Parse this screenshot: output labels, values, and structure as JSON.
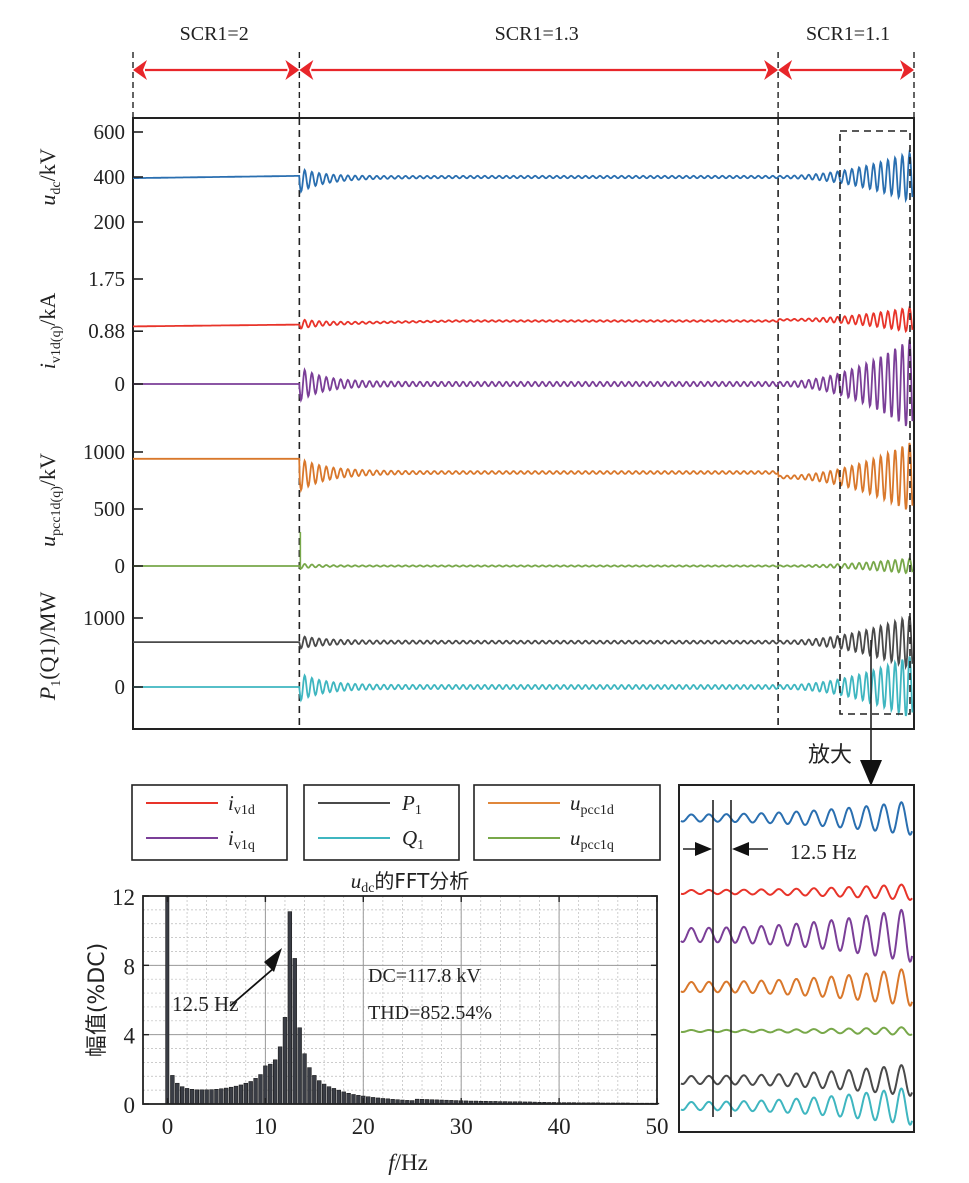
{
  "regions": [
    {
      "label": "SCR1=2",
      "t_start": 0.0,
      "t_end": 0.213
    },
    {
      "label": "SCR1=1.3",
      "t_start": 0.213,
      "t_end": 0.826
    },
    {
      "label": "SCR1=1.1",
      "t_start": 0.826,
      "t_end": 1.0
    }
  ],
  "region_arrow_color": "#e8262a",
  "zoom_label": "放大",
  "zoom_freq_label": "12.5 Hz",
  "legend": [
    {
      "items": [
        {
          "label": "i_v1d",
          "main": "i",
          "sub": "v1d",
          "color": "#e8342a"
        },
        {
          "label": "i_v1q",
          "main": "i",
          "sub": "v1q",
          "color": "#7b3f98"
        }
      ]
    },
    {
      "items": [
        {
          "label": "P_1",
          "main": "P",
          "sub": "1",
          "color": "#4a4a4a"
        },
        {
          "label": "Q_1",
          "main": "Q",
          "sub": "1",
          "color": "#3fb6c0"
        }
      ]
    },
    {
      "items": [
        {
          "label": "u_pcc1d",
          "main": "u",
          "sub": "pcc1d",
          "color": "#e0873b"
        },
        {
          "label": "u_pcc1q",
          "main": "u",
          "sub": "pcc1q",
          "color": "#78a84a"
        }
      ]
    }
  ],
  "chart_data": [
    {
      "type": "line",
      "title": "Time-domain waveforms under SCR1 changes",
      "xlabel": "",
      "x_range": [
        0,
        1
      ],
      "panels": [
        {
          "ylabel": "u_dc/kV",
          "ylabel_main": "u",
          "ylabel_sub": "dc",
          "ylabel_unit": "/kV",
          "yticks": [
            "600",
            "400",
            "200"
          ],
          "ytick_values": [
            600,
            400,
            200
          ],
          "series": [
            {
              "name": "u_dc",
              "color": "#2a6fb0",
              "steady": 400,
              "pre": 395,
              "osc_amp_scr13": 40,
              "osc_amp_scr11_end": 190
            }
          ]
        },
        {
          "ylabel": "i_v1d(q)/kA",
          "ylabel_main": "i",
          "ylabel_sub": "v1d(q)",
          "ylabel_unit": "/kA",
          "yticks": [
            "1.75",
            "0.88",
            "0"
          ],
          "ytick_values": [
            1.75,
            0.88,
            0
          ],
          "series": [
            {
              "name": "i_v1d",
              "color": "#e8342a",
              "steady": 1.0,
              "pre": 0.95
            },
            {
              "name": "i_v1q",
              "color": "#7b3f98",
              "steady": 0,
              "pre": 0
            }
          ]
        },
        {
          "ylabel": "u_pcc1d(q)/kV",
          "ylabel_main": "u",
          "ylabel_sub": "pcc1d(q)",
          "ylabel_unit": "/kV",
          "yticks": [
            "1000",
            "500",
            "0"
          ],
          "ytick_values": [
            1000,
            500,
            0
          ],
          "series": [
            {
              "name": "u_pcc1d",
              "color": "#d9782c",
              "steady": 820,
              "pre": 940
            },
            {
              "name": "u_pcc1q",
              "color": "#78a84a",
              "steady": 0,
              "pre": 0
            }
          ]
        },
        {
          "ylabel": "P1(Q1)/MW",
          "ylabel_main": "P",
          "ylabel_sub": "1",
          "ylabel_unit": "(Q1)/MW",
          "yticks": [
            "1000",
            "0"
          ],
          "ytick_values": [
            1000,
            0
          ],
          "series": [
            {
              "name": "P_1",
              "color": "#4a4a4a",
              "steady": 650,
              "pre": 650
            },
            {
              "name": "Q_1",
              "color": "#3fb6c0",
              "steady": 0,
              "pre": 0
            }
          ]
        }
      ]
    },
    {
      "type": "bar",
      "title": "u_dc的FFT分析",
      "title_main": "u",
      "title_sub": "dc",
      "title_rest": "的FFT分析",
      "xlabel": "f/Hz",
      "ylabel": "幅值(%DC)",
      "xlim": [
        -2.5,
        50
      ],
      "ylim": [
        0,
        12
      ],
      "xticks": [
        "0",
        "10",
        "20",
        "30",
        "40",
        "50"
      ],
      "yticks": [
        "0",
        "4",
        "8",
        "12"
      ],
      "grid": true,
      "annotations": [
        "12.5 Hz",
        "DC=117.8 kV",
        "THD=852.54%"
      ],
      "peak_label": "12.5 Hz",
      "dc_text": "DC=117.8 kV",
      "thd_text": "THD=852.54%",
      "bar_color": "#3a3d45",
      "bin_width_hz": 0.5,
      "bars": [
        12.0,
        1.65,
        1.2,
        1.0,
        0.9,
        0.85,
        0.82,
        0.82,
        0.82,
        0.83,
        0.85,
        0.88,
        0.92,
        0.97,
        1.03,
        1.1,
        1.2,
        1.3,
        1.48,
        1.7,
        2.2,
        2.3,
        2.55,
        3.3,
        5.0,
        11.1,
        8.4,
        4.4,
        2.9,
        2.1,
        1.65,
        1.35,
        1.15,
        1.0,
        0.9,
        0.8,
        0.7,
        0.62,
        0.55,
        0.5,
        0.46,
        0.42,
        0.38,
        0.35,
        0.32,
        0.3,
        0.27,
        0.25,
        0.23,
        0.21,
        0.2,
        0.28,
        0.27,
        0.26,
        0.25,
        0.24,
        0.23,
        0.22,
        0.21,
        0.2,
        0.19,
        0.18,
        0.17,
        0.17,
        0.16,
        0.16,
        0.15,
        0.15,
        0.14,
        0.14,
        0.13,
        0.13,
        0.13,
        0.12,
        0.12,
        0.11,
        0.1,
        0.1,
        0.09,
        0.09,
        0.08,
        0.08,
        0.08,
        0.08,
        0.07,
        0.07,
        0.07,
        0.07,
        0.07,
        0.06,
        0.06,
        0.06,
        0.06,
        0.06,
        0.06,
        0.05,
        0.05,
        0.05,
        0.05,
        0.05,
        0.05
      ]
    }
  ]
}
